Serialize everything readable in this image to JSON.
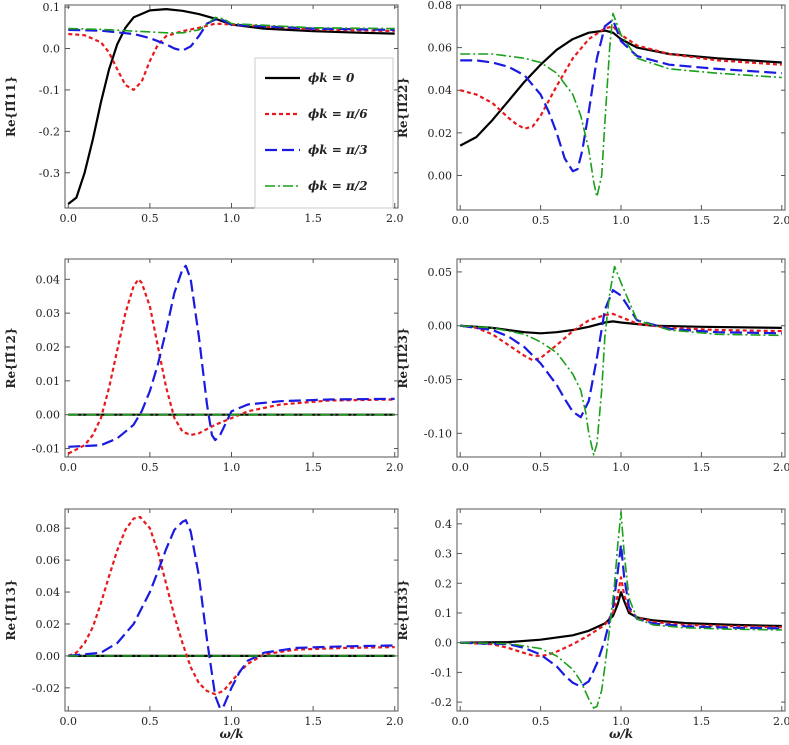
{
  "figure": {
    "xlabel": "ω/k",
    "legend": {
      "placement": "inside panel 1, right",
      "entries": [
        {
          "label": "ϕk = 0",
          "color": "#000000",
          "dash": "solid"
        },
        {
          "label": "ϕk = π/6",
          "color": "#e8191c",
          "dash": "dotted"
        },
        {
          "label": "ϕk = π/3",
          "color": "#1a1ae0",
          "dash": "long-dash"
        },
        {
          "label": "ϕk = π/2",
          "color": "#1aa01a",
          "dash": "dash-dot"
        }
      ]
    }
  },
  "chart_data": [
    {
      "type": "line",
      "ylabel": "Re{Π̃11}",
      "xlim": [
        -0.02,
        2.02
      ],
      "ylim": [
        -0.385,
        0.105
      ],
      "xticks": [
        "0.0",
        "0.5",
        "1.0",
        "1.5",
        "2.0"
      ],
      "yticks": [
        "0.1",
        "0.0",
        "-0.1",
        "-0.2",
        "-0.3"
      ],
      "series": [
        {
          "name": "ϕk = 0",
          "x": [
            0,
            0.05,
            0.1,
            0.15,
            0.2,
            0.25,
            0.3,
            0.35,
            0.4,
            0.5,
            0.6,
            0.7,
            0.8,
            0.9,
            1.0,
            1.2,
            1.5,
            1.8,
            2.0
          ],
          "y": [
            -0.375,
            -0.36,
            -0.3,
            -0.22,
            -0.13,
            -0.05,
            0.01,
            0.05,
            0.075,
            0.092,
            0.095,
            0.091,
            0.083,
            0.072,
            0.058,
            0.048,
            0.042,
            0.038,
            0.036
          ]
        },
        {
          "name": "ϕk = π/6",
          "x": [
            0,
            0.1,
            0.2,
            0.25,
            0.3,
            0.35,
            0.4,
            0.45,
            0.5,
            0.55,
            0.6,
            0.7,
            0.8,
            0.9,
            1.0,
            1.5,
            2.0
          ],
          "y": [
            0.035,
            0.032,
            0.015,
            -0.01,
            -0.05,
            -0.088,
            -0.1,
            -0.08,
            -0.03,
            0.01,
            0.03,
            0.042,
            0.05,
            0.06,
            0.058,
            0.046,
            0.042
          ]
        },
        {
          "name": "ϕk = π/3",
          "x": [
            0,
            0.2,
            0.4,
            0.5,
            0.6,
            0.65,
            0.7,
            0.75,
            0.8,
            0.85,
            0.9,
            0.95,
            1.0,
            1.5,
            2.0
          ],
          "y": [
            0.045,
            0.043,
            0.035,
            0.025,
            0.01,
            0.0,
            -0.005,
            0.005,
            0.03,
            0.06,
            0.07,
            0.068,
            0.057,
            0.048,
            0.045
          ]
        },
        {
          "name": "ϕk = π/2",
          "x": [
            0,
            0.2,
            0.4,
            0.6,
            0.7,
            0.8,
            0.85,
            0.9,
            0.95,
            1.0,
            1.5,
            2.0
          ],
          "y": [
            0.048,
            0.046,
            0.042,
            0.038,
            0.038,
            0.045,
            0.058,
            0.075,
            0.072,
            0.06,
            0.05,
            0.048
          ]
        }
      ]
    },
    {
      "type": "line",
      "ylabel": "Re{Π̃22}",
      "xlim": [
        -0.02,
        2.02
      ],
      "ylim": [
        -0.0162,
        0.08
      ],
      "xticks": [
        "0.0",
        "0.5",
        "1.0",
        "1.5",
        "2.0"
      ],
      "yticks": [
        "0.08",
        "0.06",
        "0.04",
        "0.02",
        "0.00"
      ],
      "series": [
        {
          "name": "ϕk = 0",
          "x": [
            0,
            0.1,
            0.2,
            0.3,
            0.4,
            0.5,
            0.6,
            0.7,
            0.8,
            0.9,
            0.95,
            1.0,
            1.1,
            1.3,
            1.6,
            2.0
          ],
          "y": [
            0.014,
            0.018,
            0.026,
            0.035,
            0.044,
            0.052,
            0.059,
            0.064,
            0.067,
            0.068,
            0.067,
            0.064,
            0.06,
            0.057,
            0.055,
            0.053
          ]
        },
        {
          "name": "ϕk = π/6",
          "x": [
            0,
            0.1,
            0.2,
            0.3,
            0.35,
            0.4,
            0.45,
            0.5,
            0.6,
            0.7,
            0.8,
            0.9,
            0.95,
            1.0,
            1.1,
            1.3,
            1.6,
            2.0
          ],
          "y": [
            0.04,
            0.038,
            0.034,
            0.027,
            0.024,
            0.022,
            0.023,
            0.028,
            0.042,
            0.055,
            0.064,
            0.069,
            0.07,
            0.066,
            0.061,
            0.057,
            0.054,
            0.052
          ]
        },
        {
          "name": "ϕk = π/3",
          "x": [
            0,
            0.1,
            0.2,
            0.3,
            0.4,
            0.5,
            0.55,
            0.6,
            0.65,
            0.7,
            0.73,
            0.76,
            0.8,
            0.85,
            0.9,
            0.95,
            1.0,
            1.1,
            1.3,
            1.6,
            2.0
          ],
          "y": [
            0.054,
            0.054,
            0.053,
            0.051,
            0.047,
            0.038,
            0.03,
            0.02,
            0.008,
            0.002,
            0.003,
            0.012,
            0.03,
            0.055,
            0.07,
            0.073,
            0.063,
            0.056,
            0.052,
            0.05,
            0.048
          ]
        },
        {
          "name": "ϕk = π/2",
          "x": [
            0,
            0.2,
            0.4,
            0.5,
            0.6,
            0.7,
            0.75,
            0.8,
            0.83,
            0.85,
            0.88,
            0.9,
            0.93,
            0.95,
            1.0,
            1.1,
            1.3,
            1.6,
            2.0
          ],
          "y": [
            0.057,
            0.057,
            0.055,
            0.053,
            0.048,
            0.038,
            0.028,
            0.012,
            -0.003,
            -0.01,
            0.0,
            0.025,
            0.06,
            0.076,
            0.066,
            0.055,
            0.05,
            0.048,
            0.046
          ]
        }
      ]
    },
    {
      "type": "line",
      "ylabel": "Re{Π̃12}",
      "xlim": [
        -0.02,
        2.02
      ],
      "ylim": [
        -0.0125,
        0.046
      ],
      "xticks": [
        "0.0",
        "0.5",
        "1.0",
        "1.5",
        "2.0"
      ],
      "yticks": [
        "0.04",
        "0.03",
        "0.02",
        "0.01",
        "0.00",
        "-0.01"
      ],
      "series": [
        {
          "name": "ϕk = 0",
          "x": [
            0,
            2.0
          ],
          "y": [
            0,
            0
          ]
        },
        {
          "name": "ϕk = π/6",
          "x": [
            0,
            0.1,
            0.15,
            0.2,
            0.25,
            0.3,
            0.35,
            0.4,
            0.43,
            0.45,
            0.5,
            0.55,
            0.6,
            0.65,
            0.7,
            0.75,
            0.8,
            0.9,
            1.0,
            1.1,
            1.3,
            1.6,
            2.0
          ],
          "y": [
            -0.0115,
            -0.009,
            -0.006,
            -0.001,
            0.008,
            0.019,
            0.03,
            0.038,
            0.04,
            0.039,
            0.032,
            0.02,
            0.008,
            -0.001,
            -0.005,
            -0.006,
            -0.0055,
            -0.003,
            -0.001,
            0.001,
            0.003,
            0.0042,
            0.0045
          ]
        },
        {
          "name": "ϕk = π/3",
          "x": [
            0,
            0.2,
            0.3,
            0.4,
            0.45,
            0.5,
            0.55,
            0.6,
            0.65,
            0.7,
            0.72,
            0.75,
            0.8,
            0.85,
            0.88,
            0.9,
            0.93,
            0.97,
            1.0,
            1.1,
            1.3,
            1.6,
            2.0
          ],
          "y": [
            -0.0095,
            -0.009,
            -0.007,
            -0.003,
            0.001,
            0.007,
            0.015,
            0.025,
            0.036,
            0.043,
            0.044,
            0.04,
            0.023,
            0.003,
            -0.006,
            -0.0075,
            -0.006,
            -0.002,
            0.001,
            0.003,
            0.004,
            0.0045,
            0.0047
          ]
        },
        {
          "name": "ϕk = π/2",
          "x": [
            0,
            2.0
          ],
          "y": [
            0,
            0
          ]
        }
      ]
    },
    {
      "type": "line",
      "ylabel": "Re{Π̃23}",
      "xlim": [
        -0.02,
        2.02
      ],
      "ylim": [
        -0.122,
        0.062
      ],
      "xticks": [
        "0.0",
        "0.5",
        "1.0",
        "1.5",
        "2.0"
      ],
      "yticks": [
        "0.05",
        "0.00",
        "-0.05",
        "-0.10"
      ],
      "series": [
        {
          "name": "ϕk = 0",
          "x": [
            0,
            0.2,
            0.4,
            0.5,
            0.6,
            0.7,
            0.8,
            0.9,
            0.95,
            1.0,
            1.2,
            1.5,
            2.0
          ],
          "y": [
            0,
            -0.002,
            -0.006,
            -0.007,
            -0.006,
            -0.004,
            -0.001,
            0.003,
            0.004,
            0.003,
            0.0,
            -0.001,
            -0.002
          ]
        },
        {
          "name": "ϕk = π/6",
          "x": [
            0,
            0.1,
            0.2,
            0.3,
            0.4,
            0.45,
            0.5,
            0.6,
            0.7,
            0.8,
            0.9,
            0.95,
            1.0,
            1.1,
            1.3,
            1.6,
            2.0
          ],
          "y": [
            0,
            -0.002,
            -0.008,
            -0.018,
            -0.028,
            -0.032,
            -0.03,
            -0.018,
            -0.005,
            0.005,
            0.01,
            0.011,
            0.008,
            0.002,
            -0.002,
            -0.004,
            -0.005
          ]
        },
        {
          "name": "ϕk = π/3",
          "x": [
            0,
            0.2,
            0.3,
            0.4,
            0.5,
            0.6,
            0.65,
            0.7,
            0.75,
            0.8,
            0.85,
            0.9,
            0.95,
            1.0,
            1.1,
            1.3,
            1.6,
            2.0
          ],
          "y": [
            0,
            -0.004,
            -0.01,
            -0.02,
            -0.035,
            -0.055,
            -0.068,
            -0.08,
            -0.085,
            -0.07,
            -0.03,
            0.015,
            0.033,
            0.028,
            0.005,
            -0.003,
            -0.006,
            -0.007
          ]
        },
        {
          "name": "ϕk = π/2",
          "x": [
            0,
            0.2,
            0.4,
            0.5,
            0.6,
            0.7,
            0.75,
            0.78,
            0.8,
            0.83,
            0.85,
            0.88,
            0.9,
            0.93,
            0.96,
            1.0,
            1.1,
            1.3,
            1.6,
            2.0
          ],
          "y": [
            0,
            -0.002,
            -0.008,
            -0.015,
            -0.025,
            -0.045,
            -0.06,
            -0.08,
            -0.1,
            -0.12,
            -0.11,
            -0.06,
            -0.01,
            0.03,
            0.055,
            0.04,
            0.005,
            -0.004,
            -0.008,
            -0.009
          ]
        }
      ]
    },
    {
      "type": "line",
      "ylabel": "Re{Π̃13}",
      "xlim": [
        -0.02,
        2.02
      ],
      "ylim": [
        -0.0345,
        0.092
      ],
      "xticks": [
        "0.0",
        "0.5",
        "1.0",
        "1.5",
        "2.0"
      ],
      "yticks": [
        "0.08",
        "0.06",
        "0.04",
        "0.02",
        "0.00",
        "-0.02"
      ],
      "series": [
        {
          "name": "ϕk = 0",
          "x": [
            0,
            2.0
          ],
          "y": [
            0,
            0
          ]
        },
        {
          "name": "ϕk = π/6",
          "x": [
            0,
            0.05,
            0.1,
            0.15,
            0.2,
            0.25,
            0.3,
            0.35,
            0.4,
            0.44,
            0.5,
            0.55,
            0.6,
            0.65,
            0.7,
            0.75,
            0.8,
            0.85,
            0.9,
            0.95,
            1.0,
            1.05,
            1.1,
            1.2,
            1.4,
            1.7,
            2.0
          ],
          "y": [
            0,
            0.002,
            0.008,
            0.018,
            0.033,
            0.05,
            0.066,
            0.079,
            0.086,
            0.087,
            0.08,
            0.065,
            0.045,
            0.025,
            0.008,
            -0.007,
            -0.017,
            -0.022,
            -0.024,
            -0.022,
            -0.016,
            -0.01,
            -0.005,
            0.001,
            0.004,
            0.005,
            0.0055
          ]
        },
        {
          "name": "ϕk = π/3",
          "x": [
            0,
            0.2,
            0.3,
            0.4,
            0.5,
            0.55,
            0.6,
            0.65,
            0.7,
            0.72,
            0.75,
            0.8,
            0.85,
            0.9,
            0.93,
            0.95,
            1.0,
            1.05,
            1.1,
            1.2,
            1.4,
            1.7,
            2.0
          ],
          "y": [
            0,
            0.002,
            0.008,
            0.02,
            0.04,
            0.053,
            0.067,
            0.079,
            0.084,
            0.085,
            0.078,
            0.05,
            0.01,
            -0.025,
            -0.033,
            -0.032,
            -0.02,
            -0.01,
            -0.003,
            0.002,
            0.005,
            0.006,
            0.0065
          ]
        },
        {
          "name": "ϕk = π/2",
          "x": [
            0,
            2.0
          ],
          "y": [
            0,
            0
          ]
        }
      ]
    },
    {
      "type": "line",
      "ylabel": "Re{Π̃33}",
      "xlim": [
        -0.02,
        2.02
      ],
      "ylim": [
        -0.23,
        0.45
      ],
      "xticks": [
        "0.0",
        "0.5",
        "1.0",
        "1.5",
        "2.0"
      ],
      "yticks": [
        "0.4",
        "0.3",
        "0.2",
        "0.1",
        "0.0",
        "-0.1",
        "-0.2"
      ],
      "series": [
        {
          "name": "ϕk = 0",
          "x": [
            0,
            0.3,
            0.5,
            0.7,
            0.8,
            0.9,
            0.95,
            0.98,
            1.0,
            1.02,
            1.05,
            1.1,
            1.2,
            1.4,
            1.7,
            2.0
          ],
          "y": [
            0,
            0.002,
            0.01,
            0.025,
            0.04,
            0.065,
            0.09,
            0.13,
            0.17,
            0.14,
            0.1,
            0.085,
            0.075,
            0.066,
            0.06,
            0.056
          ]
        },
        {
          "name": "ϕk = π/6",
          "x": [
            0,
            0.2,
            0.3,
            0.4,
            0.45,
            0.5,
            0.55,
            0.6,
            0.7,
            0.8,
            0.9,
            0.95,
            0.98,
            1.0,
            1.02,
            1.05,
            1.1,
            1.2,
            1.4,
            1.7,
            2.0
          ],
          "y": [
            0,
            -0.005,
            -0.018,
            -0.035,
            -0.043,
            -0.045,
            -0.04,
            -0.03,
            -0.005,
            0.025,
            0.06,
            0.1,
            0.16,
            0.22,
            0.16,
            0.11,
            0.085,
            0.07,
            0.06,
            0.055,
            0.052
          ]
        },
        {
          "name": "ϕk = π/3",
          "x": [
            0,
            0.3,
            0.4,
            0.5,
            0.6,
            0.65,
            0.7,
            0.75,
            0.8,
            0.85,
            0.9,
            0.95,
            0.98,
            1.0,
            1.02,
            1.05,
            1.1,
            1.2,
            1.4,
            1.7,
            2.0
          ],
          "y": [
            0,
            -0.005,
            -0.018,
            -0.04,
            -0.08,
            -0.11,
            -0.135,
            -0.148,
            -0.13,
            -0.07,
            0.01,
            0.12,
            0.24,
            0.33,
            0.22,
            0.12,
            0.08,
            0.065,
            0.055,
            0.05,
            0.048
          ]
        },
        {
          "name": "ϕk = π/2",
          "x": [
            0,
            0.3,
            0.5,
            0.6,
            0.7,
            0.75,
            0.8,
            0.83,
            0.85,
            0.88,
            0.9,
            0.93,
            0.96,
            0.98,
            1.0,
            1.02,
            1.05,
            1.1,
            1.2,
            1.4,
            1.7,
            2.0
          ],
          "y": [
            0,
            -0.003,
            -0.02,
            -0.045,
            -0.09,
            -0.13,
            -0.19,
            -0.22,
            -0.215,
            -0.16,
            -0.08,
            0.05,
            0.2,
            0.33,
            0.44,
            0.3,
            0.15,
            0.08,
            0.06,
            0.05,
            0.045,
            0.043
          ]
        }
      ]
    }
  ]
}
